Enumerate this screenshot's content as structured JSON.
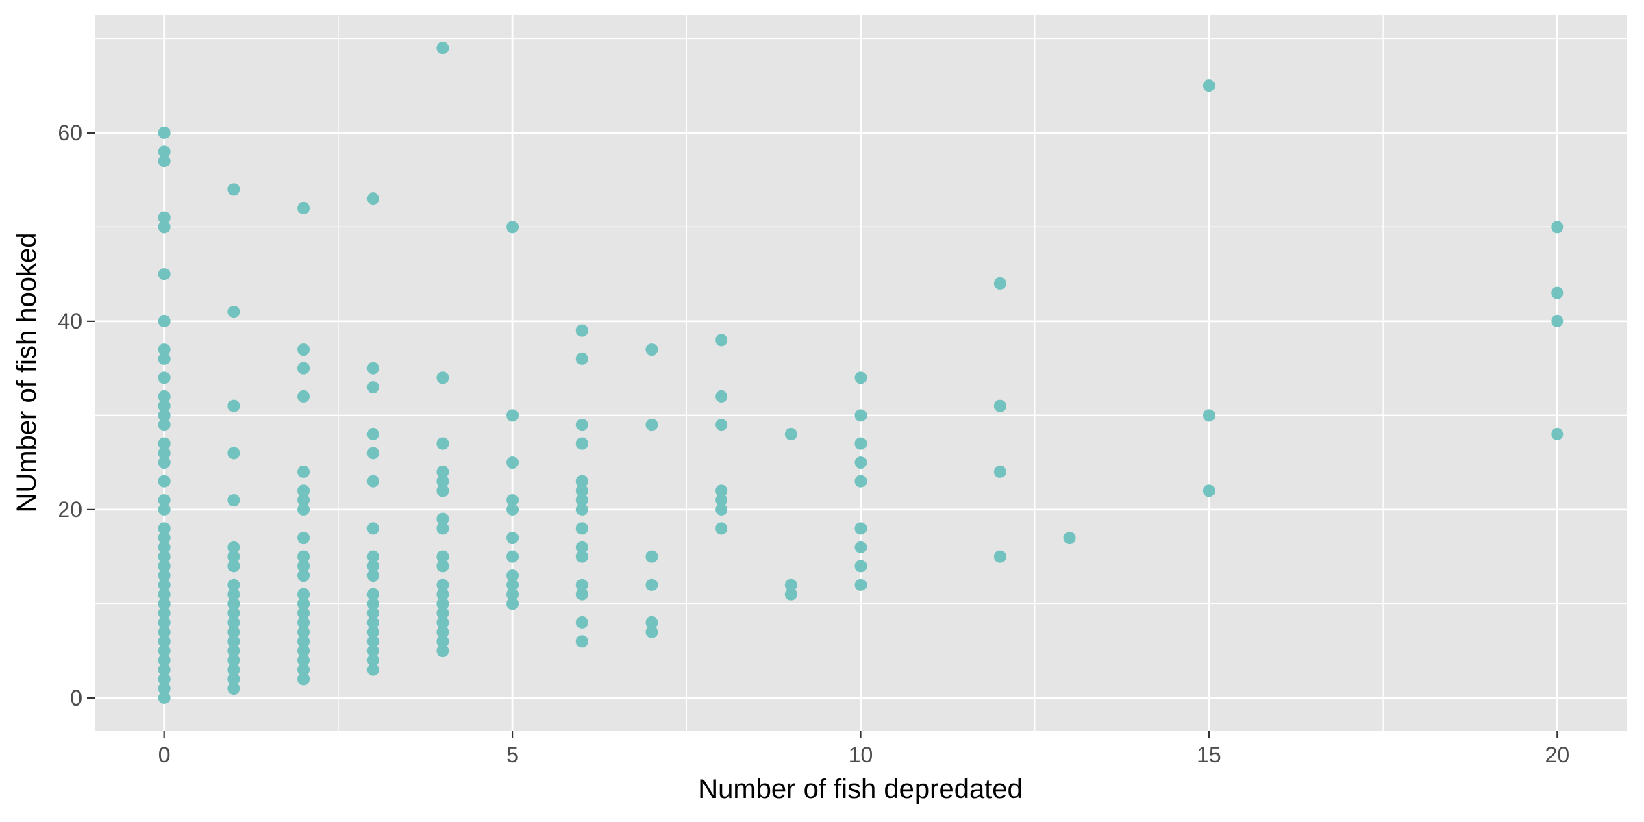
{
  "chart_data": {
    "type": "scatter",
    "title": "",
    "xlabel": "Number of fish depredated",
    "ylabel": "NUmber of fish hooked",
    "xlim": [
      -1,
      21
    ],
    "ylim": [
      -3.5,
      72.5
    ],
    "xticks": [
      0,
      5,
      10,
      15,
      20
    ],
    "yticks": [
      0,
      20,
      40,
      60
    ],
    "grid": true,
    "legend": "none",
    "point_color": "#72c2bf",
    "points": [
      [
        0,
        0
      ],
      [
        0,
        1
      ],
      [
        0,
        2
      ],
      [
        0,
        3
      ],
      [
        0,
        4
      ],
      [
        0,
        5
      ],
      [
        0,
        6
      ],
      [
        0,
        7
      ],
      [
        0,
        8
      ],
      [
        0,
        9
      ],
      [
        0,
        10
      ],
      [
        0,
        11
      ],
      [
        0,
        12
      ],
      [
        0,
        13
      ],
      [
        0,
        14
      ],
      [
        0,
        15
      ],
      [
        0,
        16
      ],
      [
        0,
        17
      ],
      [
        0,
        18
      ],
      [
        0,
        20
      ],
      [
        0,
        21
      ],
      [
        0,
        23
      ],
      [
        0,
        25
      ],
      [
        0,
        26
      ],
      [
        0,
        27
      ],
      [
        0,
        29
      ],
      [
        0,
        30
      ],
      [
        0,
        31
      ],
      [
        0,
        32
      ],
      [
        0,
        34
      ],
      [
        0,
        36
      ],
      [
        0,
        37
      ],
      [
        0,
        40
      ],
      [
        0,
        45
      ],
      [
        0,
        50
      ],
      [
        0,
        51
      ],
      [
        0,
        57
      ],
      [
        0,
        58
      ],
      [
        0,
        60
      ],
      [
        1,
        1
      ],
      [
        1,
        2
      ],
      [
        1,
        3
      ],
      [
        1,
        4
      ],
      [
        1,
        5
      ],
      [
        1,
        6
      ],
      [
        1,
        7
      ],
      [
        1,
        8
      ],
      [
        1,
        9
      ],
      [
        1,
        10
      ],
      [
        1,
        11
      ],
      [
        1,
        12
      ],
      [
        1,
        14
      ],
      [
        1,
        15
      ],
      [
        1,
        16
      ],
      [
        1,
        21
      ],
      [
        1,
        26
      ],
      [
        1,
        31
      ],
      [
        1,
        41
      ],
      [
        1,
        54
      ],
      [
        2,
        2
      ],
      [
        2,
        3
      ],
      [
        2,
        4
      ],
      [
        2,
        5
      ],
      [
        2,
        6
      ],
      [
        2,
        7
      ],
      [
        2,
        8
      ],
      [
        2,
        9
      ],
      [
        2,
        10
      ],
      [
        2,
        11
      ],
      [
        2,
        13
      ],
      [
        2,
        14
      ],
      [
        2,
        15
      ],
      [
        2,
        17
      ],
      [
        2,
        20
      ],
      [
        2,
        21
      ],
      [
        2,
        22
      ],
      [
        2,
        24
      ],
      [
        2,
        32
      ],
      [
        2,
        35
      ],
      [
        2,
        37
      ],
      [
        2,
        52
      ],
      [
        3,
        3
      ],
      [
        3,
        4
      ],
      [
        3,
        5
      ],
      [
        3,
        6
      ],
      [
        3,
        7
      ],
      [
        3,
        8
      ],
      [
        3,
        9
      ],
      [
        3,
        10
      ],
      [
        3,
        11
      ],
      [
        3,
        13
      ],
      [
        3,
        14
      ],
      [
        3,
        15
      ],
      [
        3,
        18
      ],
      [
        3,
        23
      ],
      [
        3,
        26
      ],
      [
        3,
        28
      ],
      [
        3,
        33
      ],
      [
        3,
        35
      ],
      [
        3,
        53
      ],
      [
        4,
        5
      ],
      [
        4,
        6
      ],
      [
        4,
        7
      ],
      [
        4,
        8
      ],
      [
        4,
        9
      ],
      [
        4,
        10
      ],
      [
        4,
        11
      ],
      [
        4,
        12
      ],
      [
        4,
        14
      ],
      [
        4,
        15
      ],
      [
        4,
        18
      ],
      [
        4,
        19
      ],
      [
        4,
        22
      ],
      [
        4,
        23
      ],
      [
        4,
        24
      ],
      [
        4,
        27
      ],
      [
        4,
        34
      ],
      [
        4,
        69
      ],
      [
        5,
        10
      ],
      [
        5,
        11
      ],
      [
        5,
        12
      ],
      [
        5,
        13
      ],
      [
        5,
        15
      ],
      [
        5,
        17
      ],
      [
        5,
        20
      ],
      [
        5,
        21
      ],
      [
        5,
        25
      ],
      [
        5,
        30
      ],
      [
        5,
        50
      ],
      [
        6,
        6
      ],
      [
        6,
        8
      ],
      [
        6,
        11
      ],
      [
        6,
        12
      ],
      [
        6,
        15
      ],
      [
        6,
        16
      ],
      [
        6,
        18
      ],
      [
        6,
        20
      ],
      [
        6,
        21
      ],
      [
        6,
        22
      ],
      [
        6,
        23
      ],
      [
        6,
        27
      ],
      [
        6,
        29
      ],
      [
        6,
        36
      ],
      [
        6,
        39
      ],
      [
        7,
        7
      ],
      [
        7,
        8
      ],
      [
        7,
        12
      ],
      [
        7,
        15
      ],
      [
        7,
        29
      ],
      [
        7,
        37
      ],
      [
        8,
        18
      ],
      [
        8,
        20
      ],
      [
        8,
        21
      ],
      [
        8,
        22
      ],
      [
        8,
        29
      ],
      [
        8,
        32
      ],
      [
        8,
        38
      ],
      [
        9,
        11
      ],
      [
        9,
        12
      ],
      [
        9,
        28
      ],
      [
        10,
        12
      ],
      [
        10,
        14
      ],
      [
        10,
        16
      ],
      [
        10,
        18
      ],
      [
        10,
        23
      ],
      [
        10,
        25
      ],
      [
        10,
        27
      ],
      [
        10,
        30
      ],
      [
        10,
        34
      ],
      [
        12,
        15
      ],
      [
        12,
        24
      ],
      [
        12,
        31
      ],
      [
        12,
        44
      ],
      [
        13,
        17
      ],
      [
        15,
        22
      ],
      [
        15,
        30
      ],
      [
        15,
        65
      ],
      [
        20,
        28
      ],
      [
        20,
        40
      ],
      [
        20,
        43
      ],
      [
        20,
        50
      ]
    ]
  }
}
